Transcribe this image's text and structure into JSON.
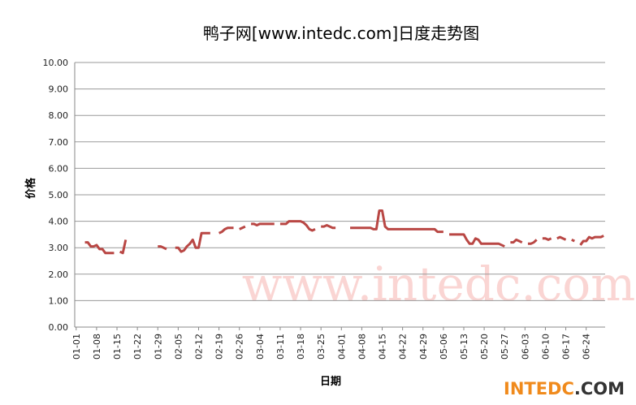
{
  "chart_data": {
    "type": "line",
    "title": "鸭子网[www.intedc.com]日度走势图",
    "x_label": "日期",
    "y_label": "价格",
    "watermark": "www.intedc.com",
    "logo": [
      "INTEDC",
      ".COM"
    ],
    "ylim": [
      0,
      10
    ],
    "yticks": [
      {
        "value": 0,
        "label": "0.00"
      },
      {
        "value": 1,
        "label": "1.00"
      },
      {
        "value": 2,
        "label": "2.00"
      },
      {
        "value": 3,
        "label": "3.00"
      },
      {
        "value": 4,
        "label": "4.00"
      },
      {
        "value": 5,
        "label": "5.00"
      },
      {
        "value": 6,
        "label": "6.00"
      },
      {
        "value": 7,
        "label": "7.00"
      },
      {
        "value": 8,
        "label": "8.00"
      },
      {
        "value": 9,
        "label": "9.00"
      },
      {
        "value": 10,
        "label": "10.00"
      }
    ],
    "grid": true,
    "categories": [
      "01-01",
      null,
      null,
      null,
      null,
      null,
      null,
      "01-08",
      null,
      null,
      null,
      null,
      null,
      null,
      "01-15",
      null,
      null,
      null,
      null,
      null,
      null,
      "01-22",
      null,
      null,
      null,
      null,
      null,
      null,
      "01-29",
      null,
      null,
      null,
      null,
      null,
      null,
      "02-05",
      null,
      null,
      null,
      null,
      null,
      null,
      "02-12",
      null,
      null,
      null,
      null,
      null,
      null,
      "02-19",
      null,
      null,
      null,
      null,
      null,
      null,
      "02-26",
      null,
      null,
      null,
      null,
      null,
      null,
      "03-04",
      null,
      null,
      null,
      null,
      null,
      null,
      "03-11",
      null,
      null,
      null,
      null,
      null,
      null,
      "03-18",
      null,
      null,
      null,
      null,
      null,
      null,
      "03-25",
      null,
      null,
      null,
      null,
      null,
      null,
      "04-01",
      null,
      null,
      null,
      null,
      null,
      null,
      "04-08",
      null,
      null,
      null,
      null,
      null,
      null,
      "04-15",
      null,
      null,
      null,
      null,
      null,
      null,
      "04-22",
      null,
      null,
      null,
      null,
      null,
      null,
      "04-29",
      null,
      null,
      null,
      null,
      null,
      null,
      "05-06",
      null,
      null,
      null,
      null,
      null,
      null,
      "05-13",
      null,
      null,
      null,
      null,
      null,
      null,
      "05-20",
      null,
      null,
      null,
      null,
      null,
      null,
      "05-27",
      null,
      null,
      null,
      null,
      null,
      null,
      "06-03",
      null,
      null,
      null,
      null,
      null,
      null,
      "06-10",
      null,
      null,
      null,
      null,
      null,
      null,
      "06-17",
      null,
      null,
      null,
      null,
      null,
      null,
      "06-24",
      null,
      null,
      null,
      null,
      null,
      null
    ],
    "series": [
      {
        "name": "价格",
        "color": "#b94744",
        "values": [
          null,
          null,
          null,
          3.2,
          3.2,
          3.05,
          3.05,
          3.1,
          2.95,
          2.95,
          2.8,
          2.8,
          2.8,
          2.8,
          null,
          2.85,
          2.8,
          3.3,
          null,
          null,
          null,
          null,
          null,
          null,
          null,
          null,
          null,
          null,
          3.05,
          3.05,
          3.0,
          2.95,
          null,
          null,
          3.0,
          3.0,
          2.85,
          2.9,
          3.05,
          3.15,
          3.3,
          3.0,
          3.0,
          3.55,
          3.55,
          3.55,
          3.55,
          null,
          null,
          3.55,
          3.6,
          3.7,
          3.75,
          3.75,
          3.75,
          null,
          3.7,
          3.75,
          3.8,
          null,
          3.9,
          3.9,
          3.85,
          3.9,
          3.9,
          3.9,
          3.9,
          3.9,
          3.9,
          null,
          3.9,
          3.9,
          3.9,
          4.0,
          4.0,
          4.0,
          4.0,
          4.0,
          3.95,
          3.85,
          3.7,
          3.65,
          3.7,
          null,
          3.8,
          3.8,
          3.85,
          3.8,
          3.75,
          3.75,
          null,
          null,
          null,
          null,
          3.75,
          3.75,
          3.75,
          3.75,
          3.75,
          3.75,
          3.75,
          3.75,
          3.7,
          3.7,
          4.4,
          4.4,
          3.8,
          3.7,
          3.7,
          3.7,
          3.7,
          3.7,
          3.7,
          3.7,
          3.7,
          3.7,
          3.7,
          3.7,
          3.7,
          3.7,
          3.7,
          3.7,
          3.7,
          3.7,
          3.6,
          3.6,
          3.6,
          null,
          3.5,
          3.5,
          3.5,
          3.5,
          3.5,
          3.5,
          3.3,
          3.15,
          3.15,
          3.35,
          3.3,
          3.15,
          3.15,
          3.15,
          3.15,
          3.15,
          3.15,
          3.15,
          3.1,
          3.05,
          null,
          3.2,
          3.2,
          3.3,
          3.25,
          3.2,
          null,
          3.15,
          3.15,
          3.2,
          3.3,
          null,
          3.35,
          3.35,
          3.3,
          3.35,
          null,
          3.35,
          3.4,
          3.35,
          3.3,
          null,
          3.3,
          3.25,
          null,
          3.1,
          3.25,
          3.25,
          3.4,
          3.35,
          3.4,
          3.4,
          3.4,
          3.45
        ]
      }
    ]
  }
}
